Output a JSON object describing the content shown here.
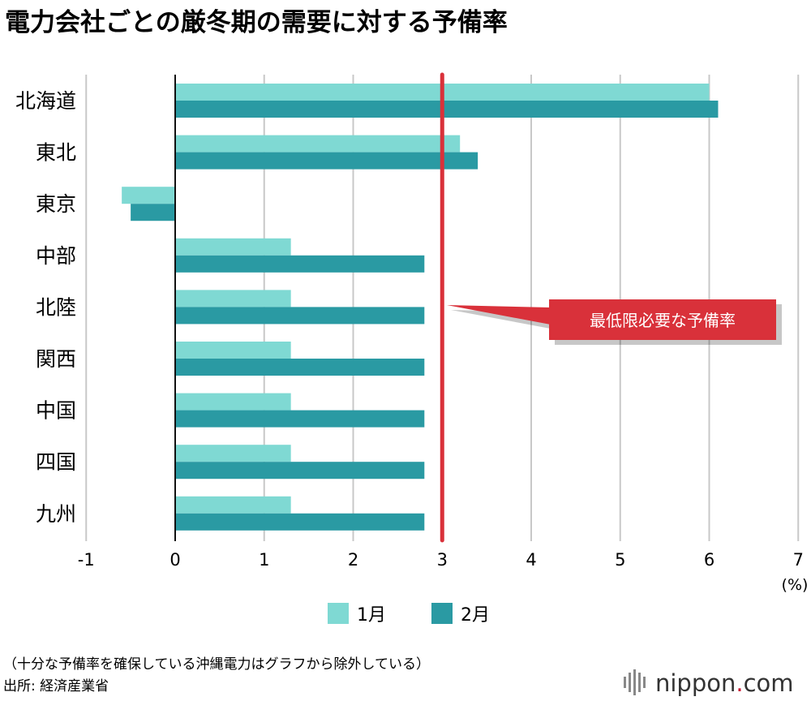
{
  "title": "電力会社ごとの厳冬期の需要に対する予備率",
  "chart_data": {
    "type": "bar",
    "orientation": "horizontal",
    "categories": [
      "北海道",
      "東北",
      "東京",
      "中部",
      "北陸",
      "関西",
      "中国",
      "四国",
      "九州"
    ],
    "series": [
      {
        "name": "1月",
        "color": "#7fd9d3",
        "values": [
          6.0,
          3.2,
          -0.6,
          1.3,
          1.3,
          1.3,
          1.3,
          1.3,
          1.3
        ]
      },
      {
        "name": "2月",
        "color": "#2a9aa3",
        "values": [
          6.1,
          3.4,
          -0.5,
          2.8,
          2.8,
          2.8,
          2.8,
          2.8,
          2.8
        ]
      }
    ],
    "xlim": [
      -1,
      7
    ],
    "xticks": [
      -1,
      0,
      1,
      2,
      3,
      4,
      5,
      6,
      7
    ],
    "xunit": "(%)",
    "grid": true,
    "reference_line": {
      "value": 3,
      "label": "最低限必要な予備率",
      "color": "#d9313a"
    },
    "legend_position": "bottom-center"
  },
  "notes": {
    "line1": "（十分な予備率を確保している沖縄電力はグラフから除外している）",
    "line2": "出所: 経済産業省"
  },
  "brand": {
    "part1": "nippon",
    "dot": ".",
    "part2": "com"
  }
}
